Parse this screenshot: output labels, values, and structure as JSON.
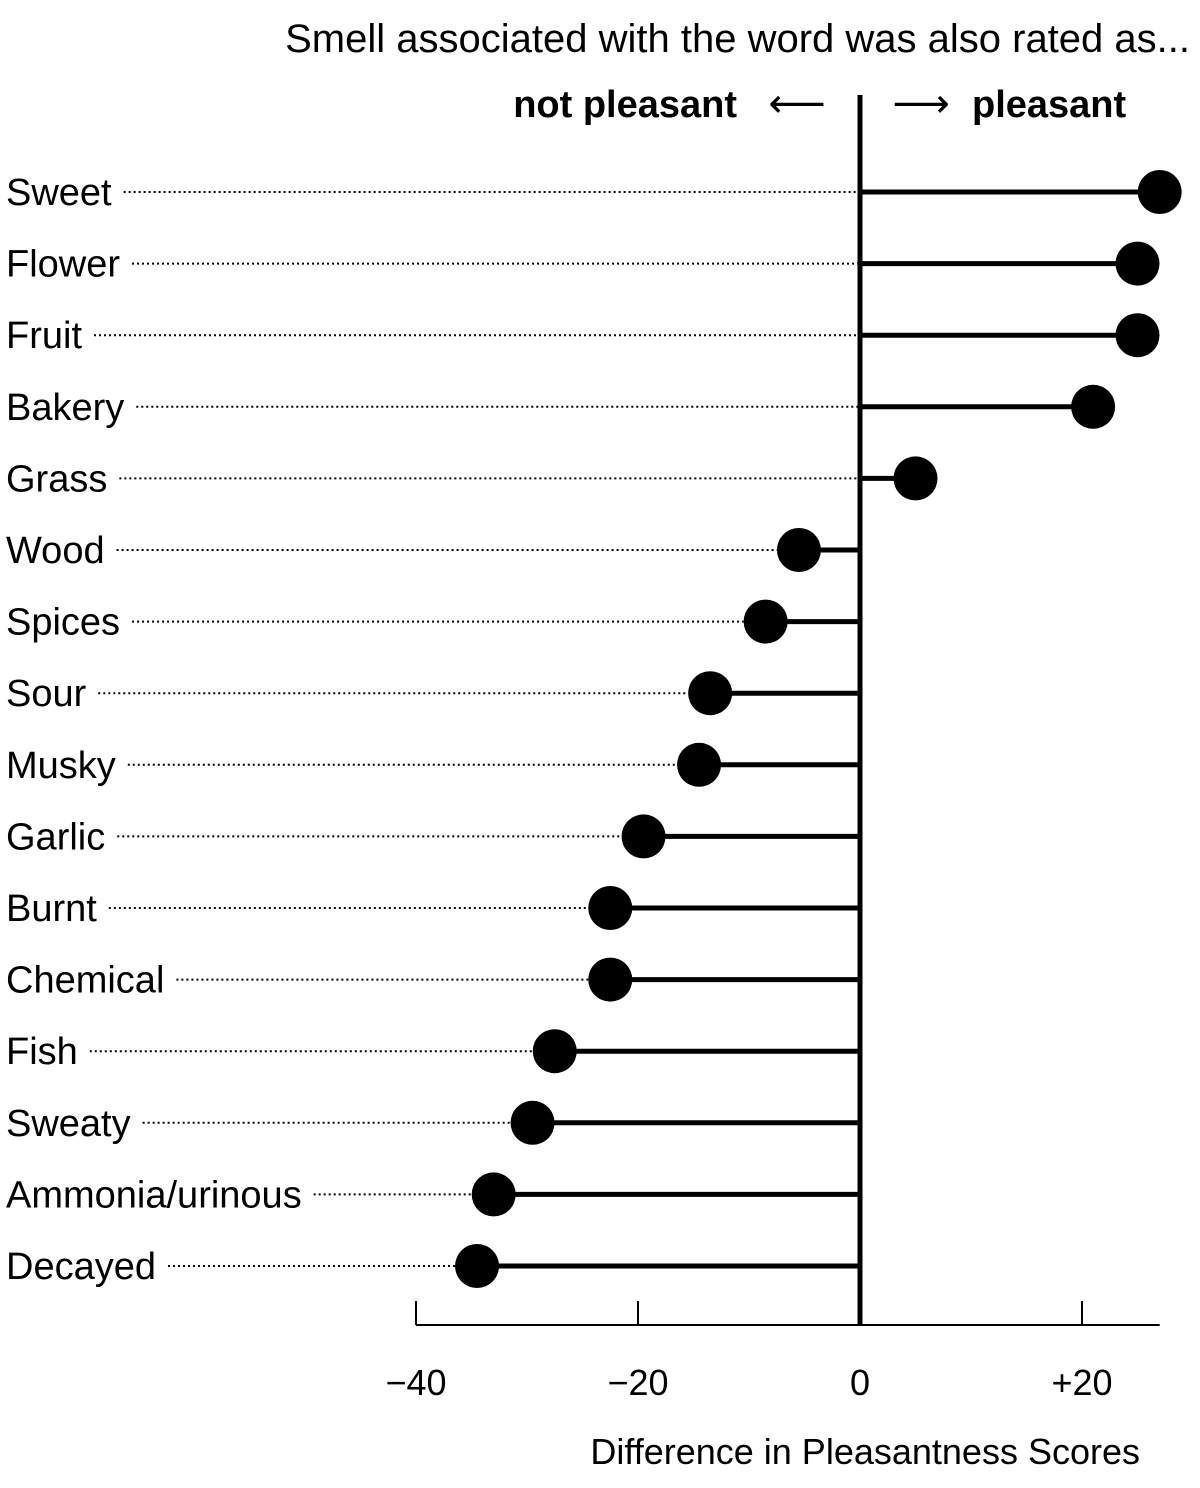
{
  "chart_data": {
    "type": "lollipop",
    "title": "Smell associated with the word was also rated as...",
    "direction_labels": {
      "negative": "not pleasant",
      "positive": "pleasant",
      "negative_arrow": "⟵",
      "positive_arrow": "⟶"
    },
    "categories": [
      "Sweet",
      "Flower",
      "Fruit",
      "Bakery",
      "Grass",
      "Wood",
      "Spices",
      "Sour",
      "Musky",
      "Garlic",
      "Burnt",
      "Chemical",
      "Fish",
      "Sweaty",
      "Ammonia/urinous",
      "Decayed"
    ],
    "values": [
      27,
      25,
      25,
      21,
      5,
      -5.5,
      -8.5,
      -13.5,
      -14.5,
      -19.5,
      -22.5,
      -22.5,
      -27.5,
      -29.5,
      -33,
      -34.5
    ],
    "xlabel": "Difference in Pleasantness Scores",
    "xlim": [
      -40,
      27
    ],
    "xticks": [
      -40,
      -20,
      0,
      20
    ],
    "xtick_labels": [
      "−40",
      "−20",
      "0",
      "+20"
    ],
    "grid": false,
    "colors": {
      "marks": "#000000",
      "leader": "#000000"
    }
  }
}
